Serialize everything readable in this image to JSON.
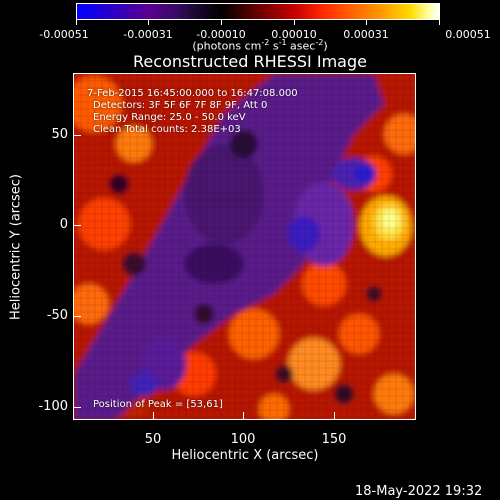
{
  "colorbar": {
    "tick_labels": [
      "-0.00051",
      "-0.00031",
      "-0.00010",
      "0.00010",
      "0.00031",
      "0.00051"
    ],
    "units_text": "(photons cm",
    "units_exp1": "-2",
    "units_mid": " s",
    "units_exp2": "-1",
    "units_mid2": " asec",
    "units_exp3": "-2",
    "units_end": ")"
  },
  "title": "Reconstructed RHESSI Image",
  "info": {
    "line1": "7-Feb-2015 16:45:00.000 to 16:47:08.000",
    "line2": "Detectors: 3F 5F 6F 7F 8F 9F, Att 0",
    "line3": "Energy Range: 25.0 - 50.0 keV",
    "line4": "Clean     Total counts: 2.38E+03",
    "peak": "Position of Peak = [53,61]"
  },
  "axes": {
    "xlabel": "Heliocentric X (arcsec)",
    "ylabel": "Heliocentric Y (arcsec)",
    "xticks": [
      "50",
      "100",
      "150"
    ],
    "yticks": [
      "50",
      "0",
      "-50",
      "-100"
    ]
  },
  "timestamp": "18-May-2022 19:32",
  "colors": {
    "background": "#000000",
    "text": "#ffffff"
  }
}
